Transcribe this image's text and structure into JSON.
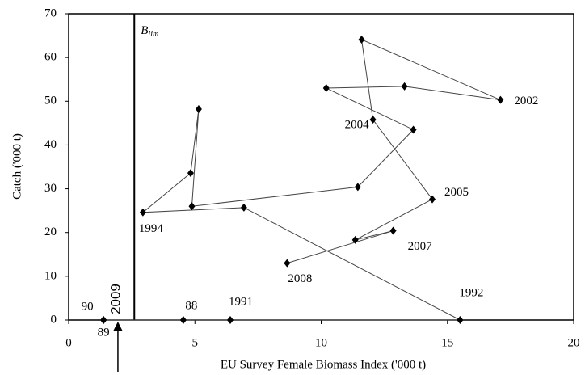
{
  "chart_data": {
    "type": "connected-scatter",
    "x_label": "EU Survey Female Biomass Index ('000 t)",
    "y_label": "Catch ('000 t)",
    "xlim": [
      0,
      20
    ],
    "xticks": [
      0,
      5,
      10,
      15,
      20
    ],
    "ylim": [
      0,
      70
    ],
    "yticks": [
      0,
      10,
      20,
      30,
      40,
      50,
      60,
      70
    ],
    "series": [
      {
        "color": "#000000",
        "x": [
          4.54,
          1.38,
          1.38,
          6.4,
          15.5,
          6.94,
          2.94,
          4.83,
          5.15,
          4.88,
          11.45,
          13.65,
          10.2,
          13.3,
          17.1,
          11.6,
          12.05,
          14.4,
          11.35,
          12.85,
          8.65
        ],
        "values": [
          0,
          0,
          0,
          0,
          0,
          25.7,
          24.6,
          33.6,
          48.2,
          26.0,
          30.4,
          43.5,
          53.0,
          53.4,
          50.3,
          64.1,
          45.8,
          27.6,
          18.3,
          20.4,
          13.0
        ],
        "labels": [
          "88",
          "89",
          "90",
          "1991",
          "1992",
          null,
          "1994",
          null,
          null,
          null,
          null,
          null,
          null,
          null,
          "2002",
          null,
          "2004",
          "2005",
          null,
          "2007",
          "2008"
        ]
      }
    ],
    "reference_lines": [
      {
        "x": 2.6,
        "label": "B",
        "label_sub": "lim"
      }
    ],
    "annotations": [
      {
        "text": "2009",
        "x": 1.95
      }
    ]
  }
}
